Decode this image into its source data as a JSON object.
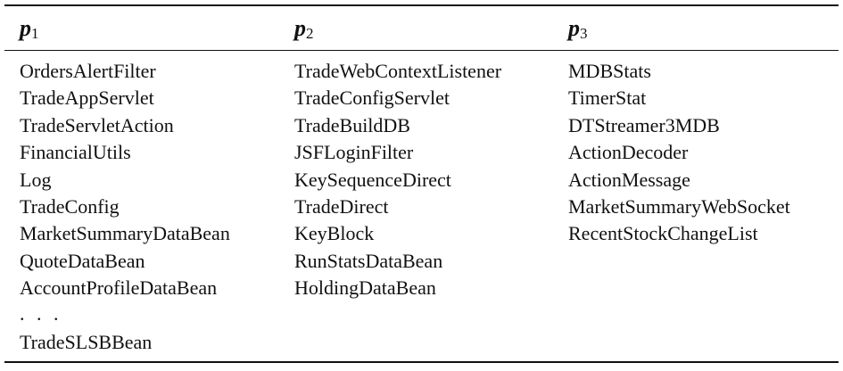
{
  "table": {
    "columns": [
      {
        "header_symbol": "p",
        "header_sub": "1",
        "items": [
          "OrdersAlertFilter",
          "TradeAppServlet",
          "TradeServletAction",
          "FinancialUtils",
          "Log",
          "TradeConfig",
          "MarketSummaryDataBean",
          "QuoteDataBean",
          "AccountProfileDataBean",
          ". . .",
          "TradeSLSBBean"
        ]
      },
      {
        "header_symbol": "p",
        "header_sub": "2",
        "items": [
          "TradeWebContextListener",
          "TradeConfigServlet",
          "TradeBuildDB",
          "JSFLoginFilter",
          "KeySequenceDirect",
          "TradeDirect",
          "KeyBlock",
          "RunStatsDataBean",
          "HoldingDataBean"
        ]
      },
      {
        "header_symbol": "p",
        "header_sub": "3",
        "items": [
          "MDBStats",
          "TimerStat",
          "DTStreamer3MDB",
          "ActionDecoder",
          "ActionMessage",
          "MarketSummaryWebSocket",
          "RecentStockChangeList"
        ]
      }
    ]
  }
}
